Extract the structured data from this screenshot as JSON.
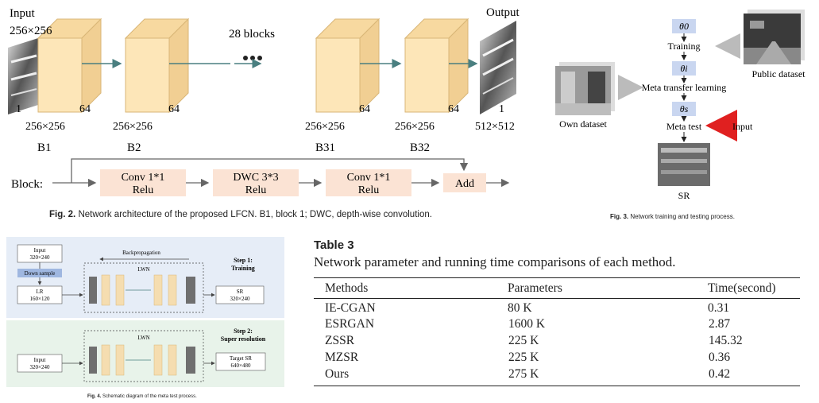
{
  "fig2": {
    "input_label": "Input",
    "input_size": "256×256",
    "output_label": "Output",
    "blocks_label": "28 blocks",
    "block_names": [
      "B1",
      "B2",
      "B31",
      "B32"
    ],
    "block_sizes": [
      "256×256",
      "256×256",
      "256×256",
      "256×256"
    ],
    "channels": [
      "64",
      "64",
      "64",
      "64"
    ],
    "input_channels": "1",
    "output_channels": "1",
    "output_size": "512×512",
    "block_label": "Block:",
    "ops": [
      {
        "l1": "Conv 1*1",
        "l2": "Relu"
      },
      {
        "l1": "DWC 3*3",
        "l2": "Relu"
      },
      {
        "l1": "Conv 1*1",
        "l2": "Relu"
      }
    ],
    "add_label": "Add",
    "caption_prefix": "Fig. 2.",
    "caption_text": "Network architecture of the proposed LFCN. B1, block 1; DWC, depth-wise convolution.",
    "colors": {
      "block_face": "#fde6b8",
      "op_box": "#fbe3d4",
      "arrow": "#4a7f80"
    }
  },
  "fig3": {
    "theta0": "θ0",
    "theta_i": "θi",
    "theta_s": "θs",
    "training": "Training",
    "meta_transfer": "Meta transfer learning",
    "meta_test": "Meta test",
    "input": "Input",
    "own_dataset": "Own dataset",
    "public_dataset": "Public dataset",
    "sr": "SR",
    "caption_prefix": "Fig. 3.",
    "caption_text": "Network training and testing process.",
    "colors": {
      "theta_box": "#c9d6f0",
      "input_arrow": "#e02020"
    }
  },
  "fig4": {
    "input1_l1": "Input",
    "input1_l2": "320×240",
    "down_sample": "Down sample",
    "lr_l1": "LR",
    "lr_l2": "160×120",
    "backprop": "Backpropagation",
    "lwn1": "LWN",
    "step1_l1": "Step 1:",
    "step1_l2": "Training",
    "sr_l1": "SR",
    "sr_l2": "320×240",
    "input2_l1": "Input",
    "input2_l2": "320×240",
    "lwn2": "LWN",
    "step2_l1": "Step 2:",
    "step2_l2": "Super resolution",
    "target_l1": "Target SR",
    "target_l2": "640×480",
    "caption_prefix": "Fig. 4.",
    "caption_text": "Schematic diagram of the meta test process.",
    "colors": {
      "top_bg": "#e6edf7",
      "bottom_bg": "#e8f3ea"
    }
  },
  "table3": {
    "title": "Table 3",
    "caption": "Network parameter and running time comparisons of each method.",
    "headers": [
      "Methods",
      "Parameters",
      "Time(second)"
    ],
    "rows": [
      [
        "IE-CGAN",
        "80 K",
        "0.31"
      ],
      [
        "ESRGAN",
        "1600 K",
        "2.87"
      ],
      [
        "ZSSR",
        "225 K",
        "145.32"
      ],
      [
        "MZSR",
        "225 K",
        "0.36"
      ],
      [
        "Ours",
        "275 K",
        "0.42"
      ]
    ]
  }
}
